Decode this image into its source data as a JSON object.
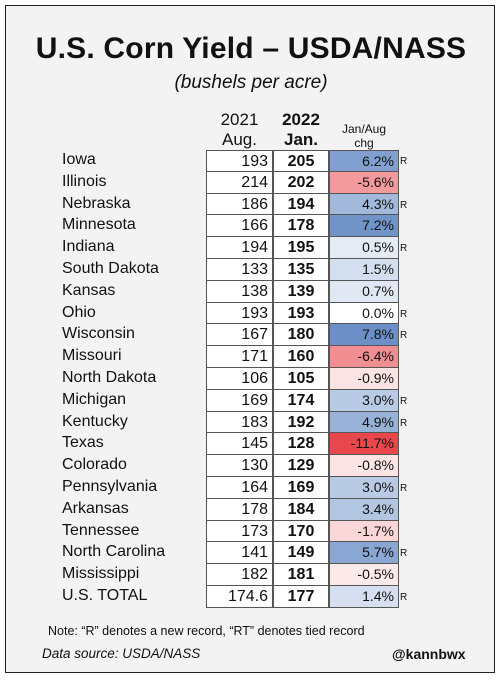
{
  "title": "U.S. Corn Yield – USDA/NASS",
  "subtitle": "(bushels per acre)",
  "headers": {
    "col2021_year": "2021",
    "col2021_label": "Aug.",
    "col2022_year": "2022",
    "col2022_label": "Jan.",
    "chg_line1": "Jan/Aug",
    "chg_line2": "chg"
  },
  "rows": [
    {
      "state": "Iowa",
      "aug2021": "193",
      "jan2022": "205",
      "chg": "6.2%",
      "chg_value": 6.2,
      "record": "R"
    },
    {
      "state": "Illinois",
      "aug2021": "214",
      "jan2022": "202",
      "chg": "-5.6%",
      "chg_value": -5.6,
      "record": ""
    },
    {
      "state": "Nebraska",
      "aug2021": "186",
      "jan2022": "194",
      "chg": "4.3%",
      "chg_value": 4.3,
      "record": "R"
    },
    {
      "state": "Minnesota",
      "aug2021": "166",
      "jan2022": "178",
      "chg": "7.2%",
      "chg_value": 7.2,
      "record": ""
    },
    {
      "state": "Indiana",
      "aug2021": "194",
      "jan2022": "195",
      "chg": "0.5%",
      "chg_value": 0.5,
      "record": "R"
    },
    {
      "state": "South Dakota",
      "aug2021": "133",
      "jan2022": "135",
      "chg": "1.5%",
      "chg_value": 1.5,
      "record": ""
    },
    {
      "state": "Kansas",
      "aug2021": "138",
      "jan2022": "139",
      "chg": "0.7%",
      "chg_value": 0.7,
      "record": ""
    },
    {
      "state": "Ohio",
      "aug2021": "193",
      "jan2022": "193",
      "chg": "0.0%",
      "chg_value": 0.0,
      "record": "R"
    },
    {
      "state": "Wisconsin",
      "aug2021": "167",
      "jan2022": "180",
      "chg": "7.8%",
      "chg_value": 7.8,
      "record": "R"
    },
    {
      "state": "Missouri",
      "aug2021": "171",
      "jan2022": "160",
      "chg": "-6.4%",
      "chg_value": -6.4,
      "record": ""
    },
    {
      "state": "North Dakota",
      "aug2021": "106",
      "jan2022": "105",
      "chg": "-0.9%",
      "chg_value": -0.9,
      "record": ""
    },
    {
      "state": "Michigan",
      "aug2021": "169",
      "jan2022": "174",
      "chg": "3.0%",
      "chg_value": 3.0,
      "record": "R"
    },
    {
      "state": "Kentucky",
      "aug2021": "183",
      "jan2022": "192",
      "chg": "4.9%",
      "chg_value": 4.9,
      "record": "R"
    },
    {
      "state": "Texas",
      "aug2021": "145",
      "jan2022": "128",
      "chg": "-11.7%",
      "chg_value": -11.7,
      "record": ""
    },
    {
      "state": "Colorado",
      "aug2021": "130",
      "jan2022": "129",
      "chg": "-0.8%",
      "chg_value": -0.8,
      "record": ""
    },
    {
      "state": "Pennsylvania",
      "aug2021": "164",
      "jan2022": "169",
      "chg": "3.0%",
      "chg_value": 3.0,
      "record": "R"
    },
    {
      "state": "Arkansas",
      "aug2021": "178",
      "jan2022": "184",
      "chg": "3.4%",
      "chg_value": 3.4,
      "record": ""
    },
    {
      "state": "Tennessee",
      "aug2021": "173",
      "jan2022": "170",
      "chg": "-1.7%",
      "chg_value": -1.7,
      "record": ""
    },
    {
      "state": "North Carolina",
      "aug2021": "141",
      "jan2022": "149",
      "chg": "5.7%",
      "chg_value": 5.7,
      "record": "R"
    },
    {
      "state": "Mississippi",
      "aug2021": "182",
      "jan2022": "181",
      "chg": "-0.5%",
      "chg_value": -0.5,
      "record": ""
    },
    {
      "state": "U.S. TOTAL",
      "aug2021": "174.6",
      "jan2022": "177",
      "chg": "1.4%",
      "chg_value": 1.4,
      "record": "R"
    }
  ],
  "colors": {
    "positive": "#6b8fc6",
    "negative": "#e8474b",
    "background": "#f3f3f3"
  },
  "note": "Note: “R” denotes a new record, “RT” denotes tied record",
  "source": "Data source: USDA/NASS",
  "handle": "@kannbwx"
}
